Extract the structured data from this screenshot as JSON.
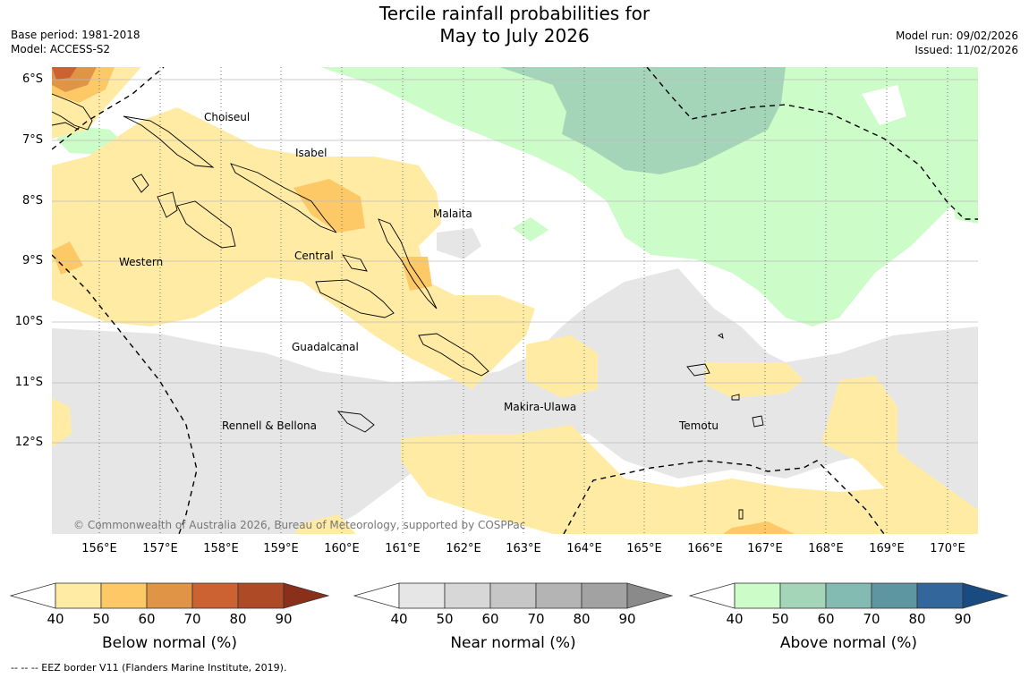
{
  "title_line1": "Tercile rainfall probabilities for",
  "title_line2": "May to July 2026",
  "meta_left": {
    "base_period": "Base period: 1981-2018",
    "model": "Model: ACCESS-S2"
  },
  "meta_right": {
    "model_run": "Model run: 09/02/2026",
    "issued": "Issued: 11/02/2026"
  },
  "lat_labels": [
    "6°S",
    "7°S",
    "8°S",
    "9°S",
    "10°S",
    "11°S",
    "12°S"
  ],
  "lon_labels": [
    "156°E",
    "157°E",
    "158°E",
    "159°E",
    "160°E",
    "161°E",
    "162°E",
    "163°E",
    "164°E",
    "165°E",
    "166°E",
    "167°E",
    "168°E",
    "169°E",
    "170°E"
  ],
  "regions": {
    "choiseul": "Choiseul",
    "isabel": "Isabel",
    "malaita": "Malaita",
    "western": "Western",
    "central": "Central",
    "guadalcanal": "Guadalcanal",
    "makira": "Makira-Ulawa",
    "temotu": "Temotu",
    "rennell": "Rennell & Bellona"
  },
  "copyright": "© Commonwealth of Australia 2026, Bureau of Meteorology, supported by COSPPac",
  "colorbars": {
    "below": {
      "title": "Below normal (%)",
      "ticks": [
        "40",
        "50",
        "60",
        "70",
        "80",
        "90"
      ],
      "colors": [
        "#ffeba3",
        "#fdc966",
        "#e09445",
        "#cc6231",
        "#af4a26",
        "#8a2f1a"
      ]
    },
    "near": {
      "title": "Near normal (%)",
      "ticks": [
        "40",
        "50",
        "60",
        "70",
        "80",
        "90"
      ],
      "colors": [
        "#e6e6e6",
        "#d7d7d7",
        "#c6c6c6",
        "#b4b4b4",
        "#a2a2a2",
        "#8a8a8a"
      ]
    },
    "above": {
      "title": "Above normal (%)",
      "ticks": [
        "40",
        "50",
        "60",
        "70",
        "80",
        "90"
      ],
      "colors": [
        "#ccfcc8",
        "#a5d5b9",
        "#83bab2",
        "#5d96a0",
        "#33669b",
        "#194a80"
      ]
    }
  },
  "footer": "--  --  -- EEZ border V11 (Flanders Marine Institute, 2019)."
}
